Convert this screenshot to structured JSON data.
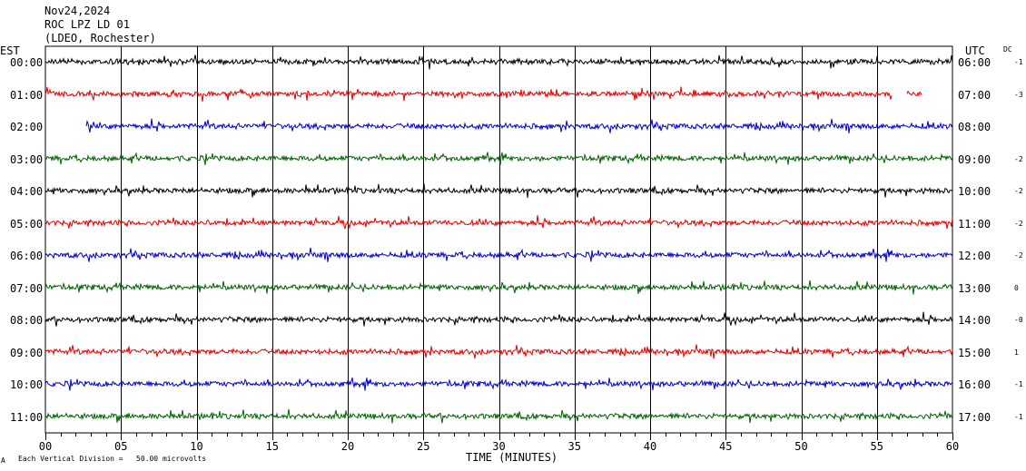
{
  "header": {
    "date": "Nov24,2024",
    "station": "ROC LPZ LD 01",
    "network": "(LDEO, Rochester)"
  },
  "axes": {
    "left_zone": "EST",
    "right_zone": "UTC",
    "dc_header": "DC",
    "xlabel": "TIME (MINUTES)",
    "footer_note": "Each Vertical Division =   50.00 microvolts",
    "corner_mark": "A"
  },
  "colors": {
    "trace_cycle": [
      "#000000",
      "#e00000",
      "#0000c8",
      "#006000"
    ],
    "grid": "#000000"
  },
  "chart_data": {
    "type": "line",
    "title": "",
    "xlabel": "TIME (MINUTES)",
    "xlim": [
      0,
      60
    ],
    "x_ticks": [
      "00",
      "05",
      "10",
      "15",
      "20",
      "25",
      "30",
      "35",
      "40",
      "45",
      "50",
      "55",
      "60"
    ],
    "grid": true,
    "rows": [
      {
        "est": "00:00",
        "utc": "06:00",
        "dc": "-1",
        "start_min": 0.0,
        "end_min": 60.0
      },
      {
        "est": "01:00",
        "utc": "07:00",
        "dc": "-3",
        "start_min": 0.0,
        "end_min": 58.0,
        "gap": [
          56.0,
          57.0
        ]
      },
      {
        "est": "02:00",
        "utc": "08:00",
        "dc": "",
        "start_min": 2.7,
        "end_min": 60.0
      },
      {
        "est": "03:00",
        "utc": "09:00",
        "dc": "-2",
        "start_min": 0.0,
        "end_min": 60.0
      },
      {
        "est": "04:00",
        "utc": "10:00",
        "dc": "-2",
        "start_min": 0.0,
        "end_min": 60.0
      },
      {
        "est": "05:00",
        "utc": "11:00",
        "dc": "-2",
        "start_min": 0.0,
        "end_min": 60.0
      },
      {
        "est": "06:00",
        "utc": "12:00",
        "dc": "-2",
        "start_min": 0.0,
        "end_min": 60.0
      },
      {
        "est": "07:00",
        "utc": "13:00",
        "dc": "0",
        "start_min": 0.0,
        "end_min": 60.0
      },
      {
        "est": "08:00",
        "utc": "14:00",
        "dc": "-0",
        "start_min": 0.0,
        "end_min": 60.0
      },
      {
        "est": "09:00",
        "utc": "15:00",
        "dc": "1",
        "start_min": 0.0,
        "end_min": 60.0
      },
      {
        "est": "10:00",
        "utc": "16:00",
        "dc": "-1",
        "start_min": 0.0,
        "end_min": 60.0
      },
      {
        "est": "11:00",
        "utc": "17:00",
        "dc": "-1",
        "start_min": 0.0,
        "end_min": 60.0
      }
    ]
  }
}
